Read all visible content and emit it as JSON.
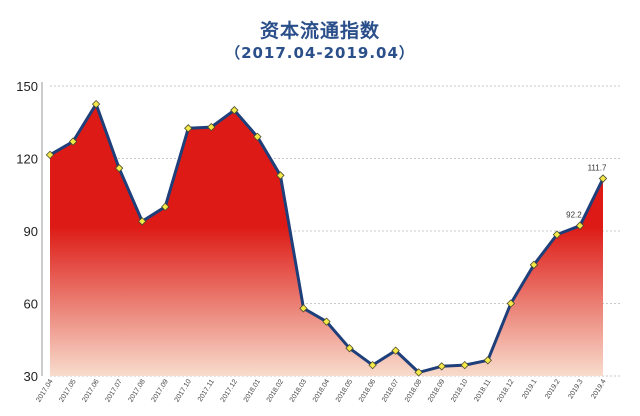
{
  "chart_data": {
    "type": "area",
    "title": "资本流通指数",
    "subtitle": "（2017.04-2019.04）",
    "ylim": [
      30,
      150
    ],
    "yticks": [
      30,
      60,
      90,
      120,
      150
    ],
    "grid": true,
    "categories": [
      "2017.04",
      "2017.05",
      "2017.06",
      "2017.07",
      "2017.08",
      "2017.09",
      "2017.10",
      "2017.11",
      "2017.12",
      "2018.01",
      "2018.02",
      "2018.03",
      "2018.04",
      "2018.05",
      "2018.06",
      "2018.07",
      "2018.08",
      "2018.09",
      "2018.10",
      "2018.11",
      "2018.12",
      "2019.1",
      "2019.2",
      "2019.3",
      "2019.4"
    ],
    "values": [
      121.5,
      127,
      142.5,
      116,
      94,
      100,
      132.5,
      133,
      140,
      129,
      113,
      58,
      52.5,
      41.5,
      34.5,
      40.5,
      31.5,
      34,
      34.5,
      36.5,
      60,
      76,
      88.5,
      92.2,
      111.7
    ],
    "data_labels": [
      {
        "index": 23,
        "text": "92.2"
      },
      {
        "index": 24,
        "text": "111.7"
      }
    ],
    "colors": {
      "line": "#1f3f7a",
      "marker": "#f5e94a",
      "fill_top": "#dd1a15",
      "fill_bottom": "#f8dccc"
    }
  }
}
